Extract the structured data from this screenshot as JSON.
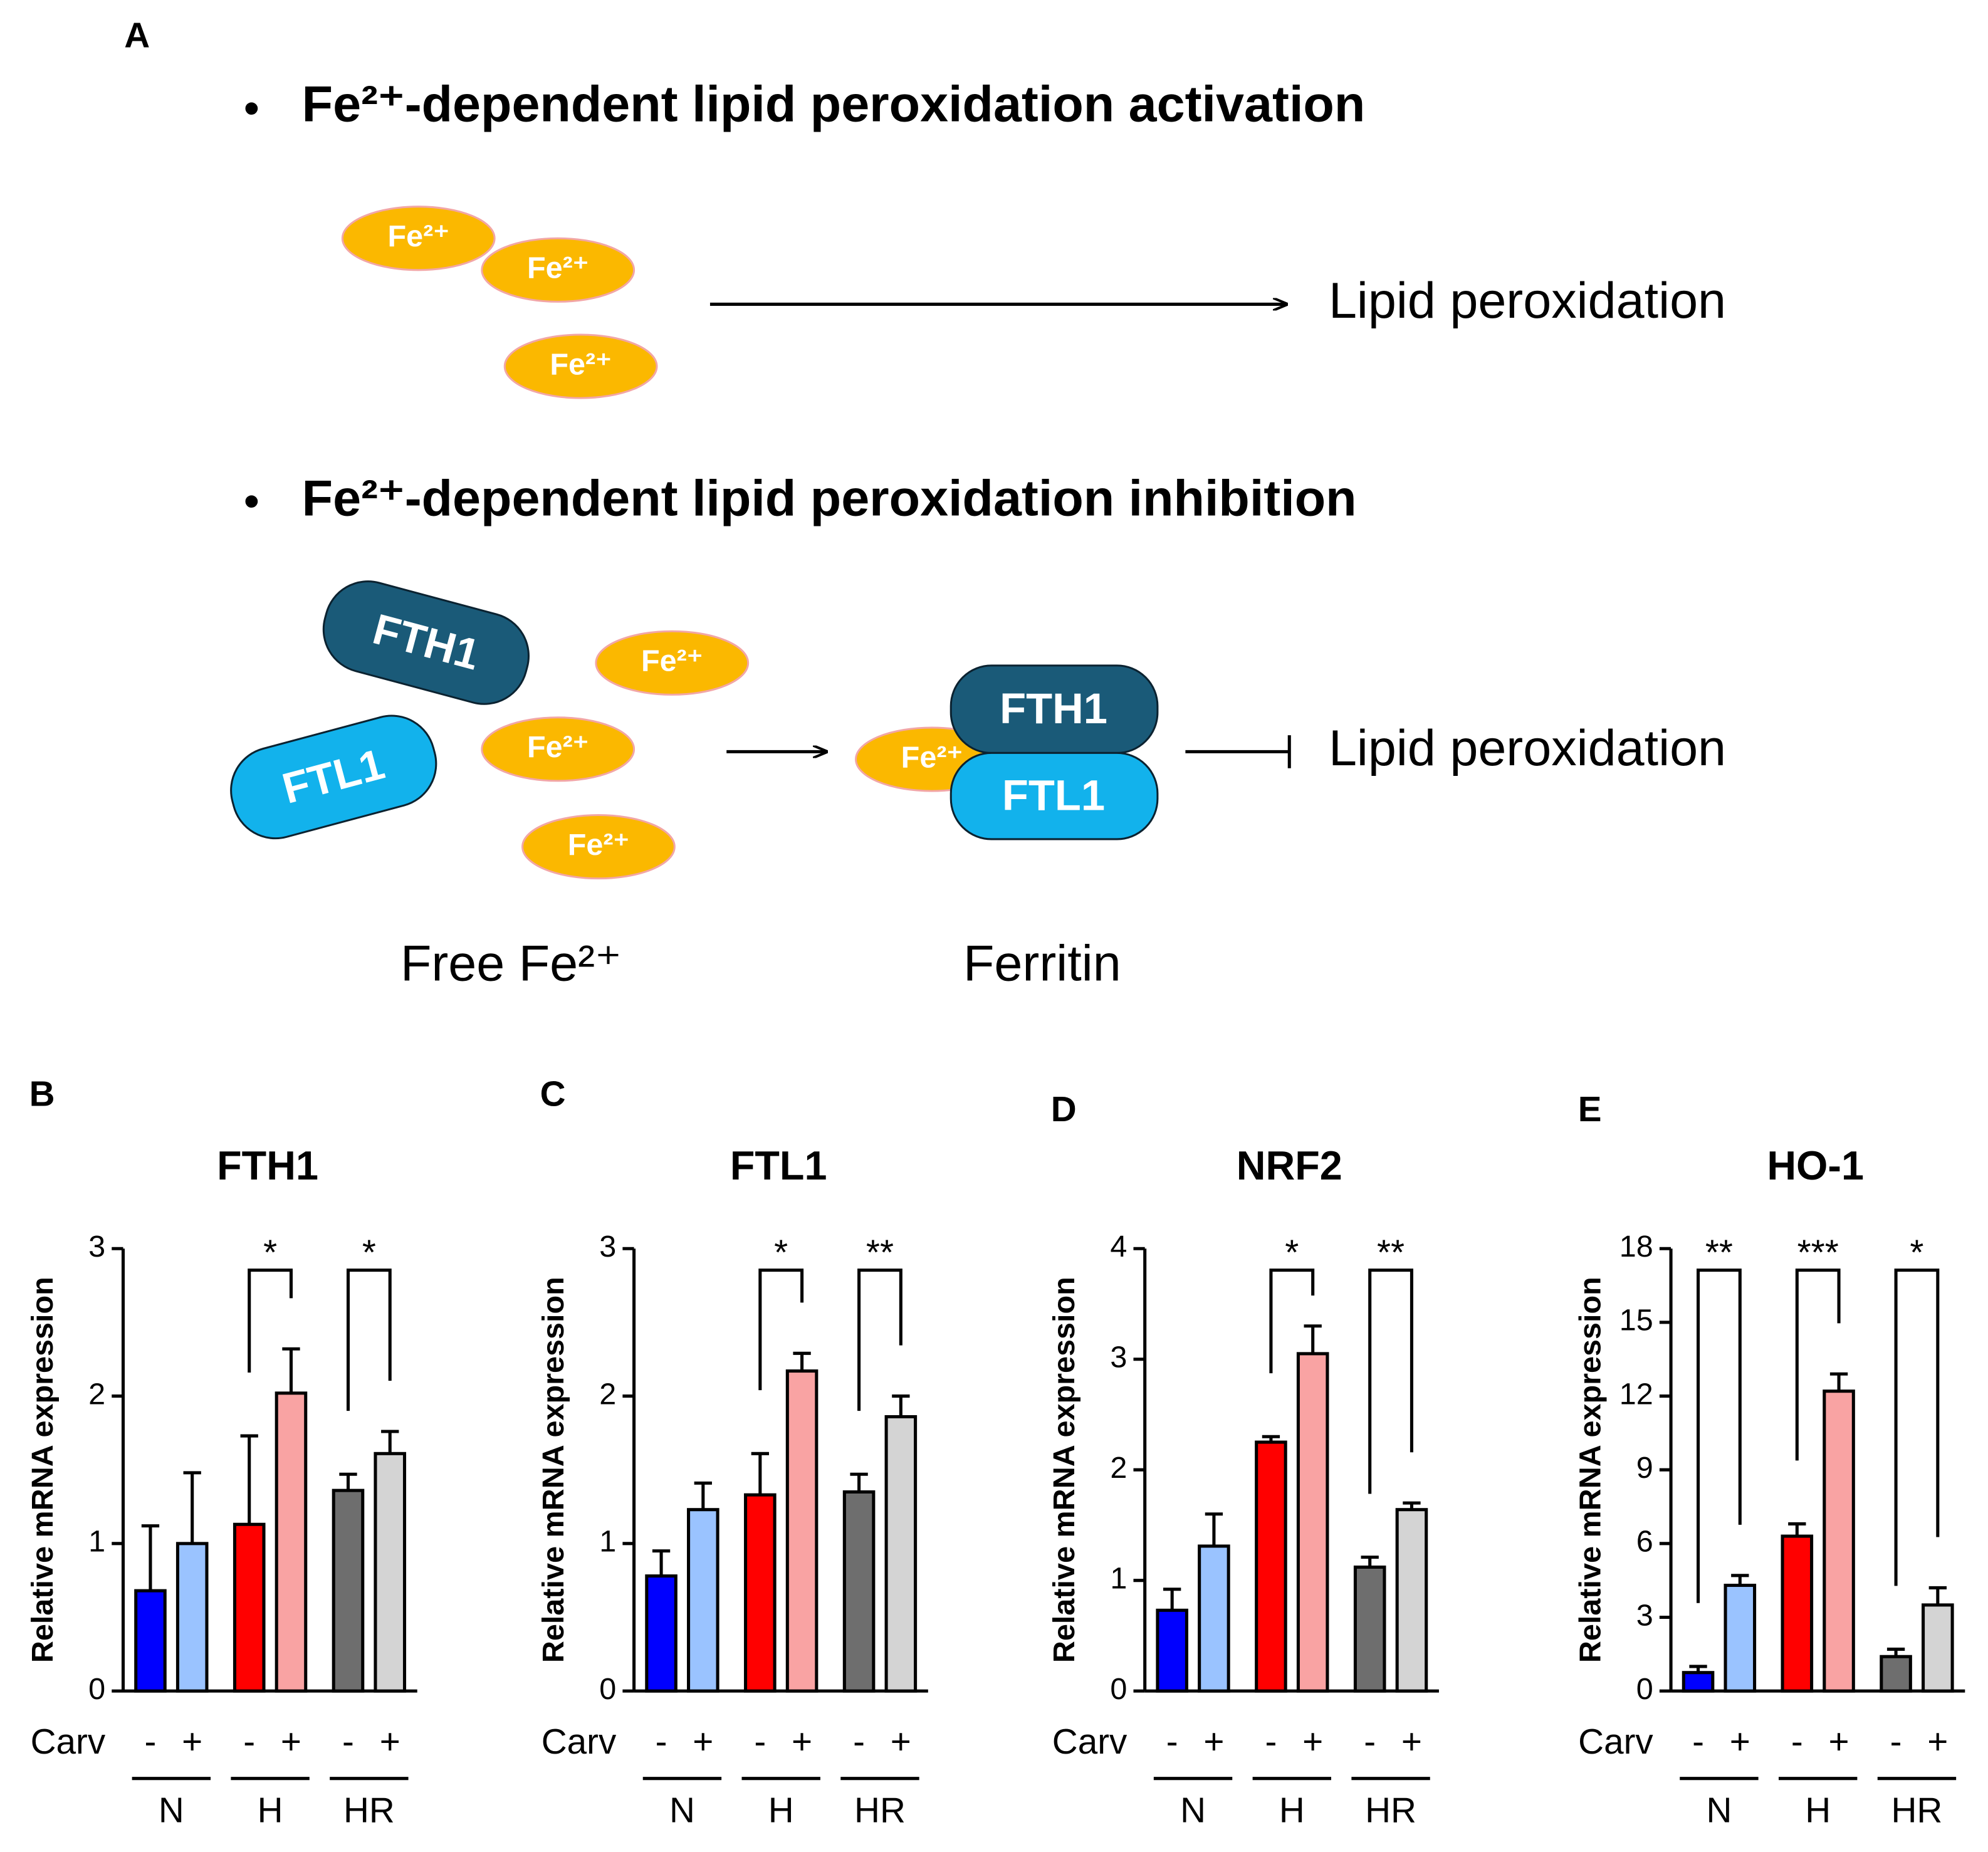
{
  "panel_a": {
    "label": "A",
    "activation": {
      "heading": "Fe²⁺-dependent lipid peroxidation activation",
      "ions": [
        "Fe²⁺",
        "Fe²⁺",
        "Fe²⁺"
      ],
      "result": "Lipid peroxidation"
    },
    "inhibition": {
      "heading": "Fe²⁺-dependent lipid peroxidation inhibition",
      "proteins": [
        "FTH1",
        "FTL1"
      ],
      "ions": [
        "Fe²⁺",
        "Fe²⁺",
        "Fe²⁺"
      ],
      "complex": {
        "ion": "Fe²⁺",
        "proteins": [
          "FTH1",
          "FTL1"
        ]
      },
      "result": "Lipid peroxidation",
      "free_label": "Free Fe²⁺",
      "ferritin_label": "Ferritin"
    }
  },
  "chart_data": [
    {
      "type": "bar",
      "panel": "B",
      "title": "FTH1",
      "y_label": "Relative mRNA expression",
      "x_label": "Carv",
      "categories": [
        "-",
        "+",
        "-",
        "+",
        "-",
        "+"
      ],
      "groups": [
        {
          "name": "N"
        },
        {
          "name": "H",
          "significance": "*"
        },
        {
          "name": "HR",
          "significance": "*"
        }
      ],
      "values": [
        0.68,
        1.0,
        1.13,
        2.02,
        1.36,
        1.61
      ],
      "errors": [
        0.44,
        0.48,
        0.6,
        0.3,
        0.11,
        0.15
      ],
      "colors": [
        "#0000ff",
        "#9ac3ff",
        "#ff0000",
        "#f9a3a3",
        "#6e6e6e",
        "#d4d4d4"
      ],
      "ylim": [
        0,
        3
      ],
      "yticks": [
        0,
        1,
        2,
        3
      ]
    },
    {
      "type": "bar",
      "panel": "C",
      "title": "FTL1",
      "y_label": "Relative mRNA expression",
      "x_label": "Carv",
      "categories": [
        "-",
        "+",
        "-",
        "+",
        "-",
        "+"
      ],
      "groups": [
        {
          "name": "N"
        },
        {
          "name": "H",
          "significance": "*"
        },
        {
          "name": "HR",
          "significance": "**"
        }
      ],
      "values": [
        0.78,
        1.23,
        1.33,
        2.17,
        1.35,
        1.86
      ],
      "errors": [
        0.17,
        0.18,
        0.28,
        0.12,
        0.12,
        0.14
      ],
      "colors": [
        "#0000ff",
        "#9ac3ff",
        "#ff0000",
        "#f9a3a3",
        "#6e6e6e",
        "#d4d4d4"
      ],
      "ylim": [
        0,
        3
      ],
      "yticks": [
        0,
        1,
        2,
        3
      ]
    },
    {
      "type": "bar",
      "panel": "D",
      "title": "NRF2",
      "y_label": "Relative mRNA expression",
      "x_label": "Carv",
      "categories": [
        "-",
        "+",
        "-",
        "+",
        "-",
        "+"
      ],
      "groups": [
        {
          "name": "N"
        },
        {
          "name": "H",
          "significance": "*"
        },
        {
          "name": "HR",
          "significance": "**"
        }
      ],
      "values": [
        0.73,
        1.31,
        2.25,
        3.05,
        1.12,
        1.64
      ],
      "errors": [
        0.19,
        0.29,
        0.05,
        0.25,
        0.09,
        0.06
      ],
      "colors": [
        "#0000ff",
        "#9ac3ff",
        "#ff0000",
        "#f9a3a3",
        "#6e6e6e",
        "#d4d4d4"
      ],
      "ylim": [
        0,
        4
      ],
      "yticks": [
        0,
        1,
        2,
        3,
        4
      ]
    },
    {
      "type": "bar",
      "panel": "E",
      "title": "HO-1",
      "y_label": "Relative mRNA expression",
      "x_label": "Carv",
      "categories": [
        "-",
        "+",
        "-",
        "+",
        "-",
        "+"
      ],
      "groups": [
        {
          "name": "N",
          "significance": "**"
        },
        {
          "name": "H",
          "significance": "***"
        },
        {
          "name": "HR",
          "significance": "*"
        }
      ],
      "values": [
        0.75,
        4.3,
        6.3,
        12.2,
        1.4,
        3.5
      ],
      "errors": [
        0.25,
        0.4,
        0.5,
        0.7,
        0.3,
        0.7
      ],
      "colors": [
        "#0000ff",
        "#9ac3ff",
        "#ff0000",
        "#f9a3a3",
        "#6e6e6e",
        "#d4d4d4"
      ],
      "ylim": [
        0,
        18
      ],
      "yticks": [
        0,
        3,
        6,
        9,
        12,
        15,
        18
      ]
    }
  ]
}
